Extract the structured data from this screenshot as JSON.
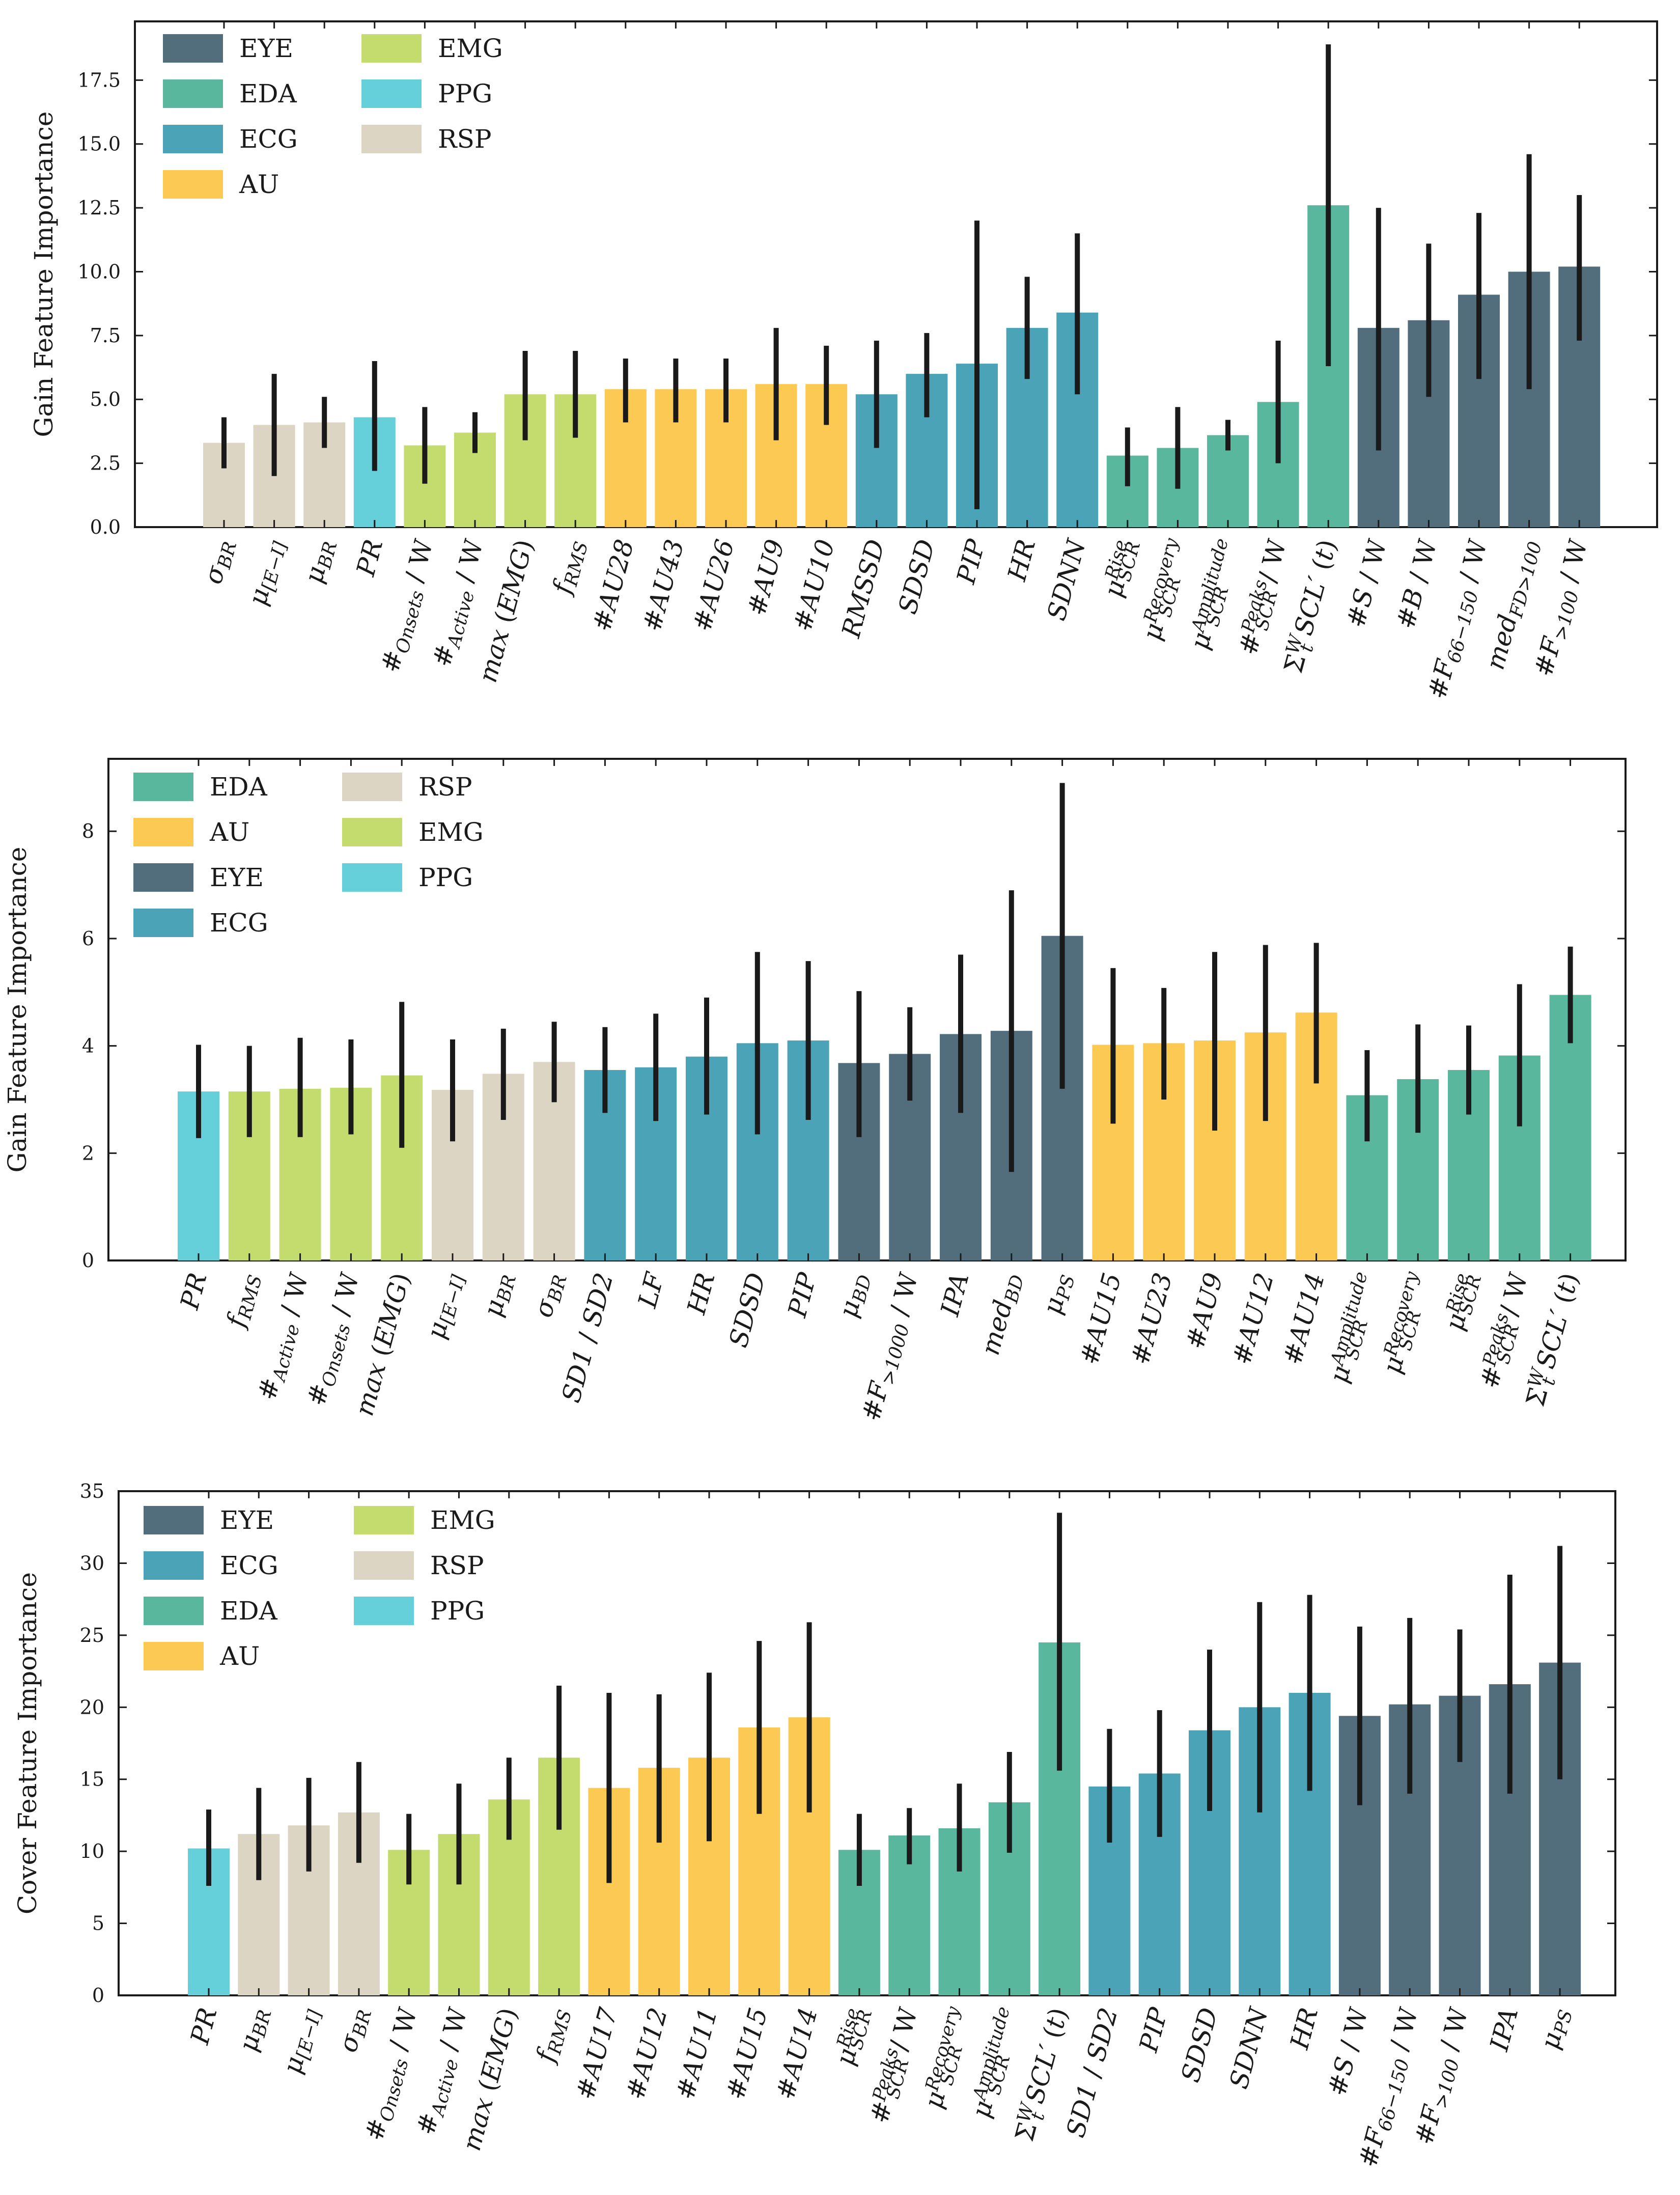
{
  "colors": {
    "EYE": "#526e7d",
    "EDA": "#58b79c",
    "ECG": "#4aa3b6",
    "AU": "#fcc952",
    "EMG": "#c4dc6e",
    "PPG": "#65d0da",
    "RSP": "#ddd5c3",
    "error_bar": "#1a1a1a"
  },
  "chart_data": [
    {
      "type": "bar",
      "ylabel": "Gain Feature Importance",
      "ylim": [
        0,
        19.8
      ],
      "yticks": [
        "0.0",
        "2.5",
        "5.0",
        "7.5",
        "10.0",
        "12.5",
        "15.0",
        "17.5"
      ],
      "legend": [
        "EYE",
        "EDA",
        "ECG",
        "AU",
        "EMG",
        "PPG",
        "RSP"
      ],
      "legend_position": "top-left",
      "categories": [
        "σBR",
        "μ[E−I]",
        "μBR",
        "PR",
        "#Onsets/W",
        "#Active/W",
        "max(EMG)",
        "fRMS",
        "#AU28",
        "#AU43",
        "#AU26",
        "#AU9",
        "#AU10",
        "RMSSD",
        "SDSD",
        "PIP",
        "HR",
        "SDNN",
        "μSCR Rise",
        "μSCR Recovery",
        "μSCR Amplitude",
        "#SCR Peaks/W",
        "Σt W SCL′(t)",
        "#S/W",
        "#B/W",
        "#F66−150/W",
        "medFD>100",
        "#F>100/W"
      ],
      "groups": [
        "RSP",
        "RSP",
        "RSP",
        "PPG",
        "EMG",
        "EMG",
        "EMG",
        "EMG",
        "AU",
        "AU",
        "AU",
        "AU",
        "AU",
        "ECG",
        "ECG",
        "ECG",
        "ECG",
        "ECG",
        "EDA",
        "EDA",
        "EDA",
        "EDA",
        "EDA",
        "EYE",
        "EYE",
        "EYE",
        "EYE",
        "EYE"
      ],
      "values": [
        3.3,
        4.0,
        4.1,
        4.3,
        3.2,
        3.7,
        5.2,
        5.2,
        5.4,
        5.4,
        5.4,
        5.6,
        5.6,
        5.2,
        6.0,
        6.4,
        7.8,
        8.4,
        2.8,
        3.1,
        3.6,
        4.9,
        12.6,
        7.8,
        8.1,
        9.1,
        10.0,
        10.2
      ],
      "err_low": [
        2.3,
        2.0,
        3.1,
        2.2,
        1.7,
        2.9,
        3.4,
        3.5,
        4.1,
        4.1,
        4.1,
        3.4,
        4.0,
        3.1,
        4.3,
        0.7,
        5.8,
        5.2,
        1.6,
        1.5,
        3.0,
        2.5,
        6.3,
        3.0,
        5.1,
        5.8,
        5.4,
        7.3
      ],
      "err_high": [
        4.3,
        6.0,
        5.1,
        6.5,
        4.7,
        4.5,
        6.9,
        6.9,
        6.6,
        6.6,
        6.6,
        7.8,
        7.1,
        7.3,
        7.6,
        12.0,
        9.8,
        11.5,
        3.9,
        4.7,
        4.2,
        7.3,
        18.9,
        12.5,
        11.1,
        12.3,
        14.6,
        13.0
      ]
    },
    {
      "type": "bar",
      "ylabel": "Gain Feature Importance",
      "ylim": [
        0,
        9.35
      ],
      "yticks": [
        "0",
        "2",
        "4",
        "6",
        "8"
      ],
      "legend": [
        "EDA",
        "AU",
        "EYE",
        "ECG",
        "RSP",
        "EMG",
        "PPG"
      ],
      "legend_position": "top-left",
      "categories": [
        "PR",
        "fRMS",
        "#Active/W",
        "#Onsets/W",
        "max(EMG)",
        "μ[E−I]",
        "μBR",
        "σBR",
        "SD1/SD2",
        "LF",
        "HR",
        "SDSD",
        "PIP",
        "μBD",
        "#F>1000/W",
        "IPA",
        "medBD",
        "μPS",
        "#AU15",
        "#AU23",
        "#AU9",
        "#AU12",
        "#AU14",
        "μSCR Amplitude",
        "μSCR Recovery",
        "μSCR Rise",
        "#SCR Peaks/W",
        "Σt W SCL′(t)"
      ],
      "groups": [
        "PPG",
        "EMG",
        "EMG",
        "EMG",
        "EMG",
        "RSP",
        "RSP",
        "RSP",
        "ECG",
        "ECG",
        "ECG",
        "ECG",
        "ECG",
        "EYE",
        "EYE",
        "EYE",
        "EYE",
        "EYE",
        "AU",
        "AU",
        "AU",
        "AU",
        "AU",
        "EDA",
        "EDA",
        "EDA",
        "EDA",
        "EDA"
      ],
      "values": [
        3.15,
        3.15,
        3.2,
        3.22,
        3.45,
        3.18,
        3.48,
        3.7,
        3.55,
        3.6,
        3.8,
        4.05,
        4.1,
        3.68,
        3.85,
        4.22,
        4.28,
        6.05,
        4.02,
        4.05,
        4.1,
        4.25,
        4.62,
        3.08,
        3.38,
        3.55,
        3.82,
        4.95
      ],
      "err_low": [
        2.28,
        2.3,
        2.3,
        2.35,
        2.1,
        2.22,
        2.62,
        2.95,
        2.75,
        2.6,
        2.72,
        2.35,
        2.62,
        2.3,
        2.98,
        2.75,
        1.65,
        3.2,
        2.55,
        3.0,
        2.42,
        2.6,
        3.3,
        2.22,
        2.38,
        2.72,
        2.5,
        4.05
      ],
      "err_high": [
        4.02,
        4.0,
        4.15,
        4.12,
        4.82,
        4.12,
        4.32,
        4.45,
        4.35,
        4.6,
        4.9,
        5.75,
        5.58,
        5.02,
        4.72,
        5.7,
        6.9,
        8.9,
        5.45,
        5.08,
        5.75,
        5.88,
        5.92,
        3.92,
        4.4,
        4.38,
        5.15,
        5.85
      ]
    },
    {
      "type": "bar",
      "ylabel": "Cover Feature Importance",
      "ylim": [
        0,
        35
      ],
      "yticks": [
        "0",
        "5",
        "10",
        "15",
        "20",
        "25",
        "30",
        "35"
      ],
      "legend": [
        "EYE",
        "ECG",
        "EDA",
        "AU",
        "EMG",
        "RSP",
        "PPG"
      ],
      "legend_position": "top-left",
      "categories": [
        "PR",
        "μBR",
        "μ[E−I]",
        "σBR",
        "#Onsets/W",
        "#Active/W",
        "max(EMG)",
        "fRMS",
        "#AU17",
        "#AU12",
        "#AU11",
        "#AU15",
        "#AU14",
        "μSCR Rise",
        "#SCR Peaks/W",
        "μSCR Recovery",
        "μSCR Amplitude",
        "Σt W SCL′(t)",
        "SD1/SD2",
        "PIP",
        "SDSD",
        "SDNN",
        "HR",
        "#S/W",
        "#F66−150/W",
        "#F>100/W",
        "IPA",
        "μPS"
      ],
      "groups": [
        "PPG",
        "RSP",
        "RSP",
        "RSP",
        "EMG",
        "EMG",
        "EMG",
        "EMG",
        "AU",
        "AU",
        "AU",
        "AU",
        "AU",
        "EDA",
        "EDA",
        "EDA",
        "EDA",
        "EDA",
        "ECG",
        "ECG",
        "ECG",
        "ECG",
        "ECG",
        "EYE",
        "EYE",
        "EYE",
        "EYE",
        "EYE"
      ],
      "values": [
        10.2,
        11.2,
        11.8,
        12.7,
        10.1,
        11.2,
        13.6,
        16.5,
        14.4,
        15.8,
        16.5,
        18.6,
        19.3,
        10.1,
        11.1,
        11.6,
        13.4,
        24.5,
        14.5,
        15.4,
        18.4,
        20.0,
        21.0,
        19.4,
        20.2,
        20.8,
        21.6,
        23.1
      ],
      "err_low": [
        7.6,
        8.0,
        8.6,
        9.2,
        7.7,
        7.7,
        10.8,
        11.5,
        7.8,
        10.6,
        10.7,
        12.6,
        12.7,
        7.6,
        9.1,
        8.6,
        9.9,
        15.6,
        10.6,
        11.0,
        12.8,
        12.7,
        14.2,
        13.2,
        14.0,
        16.2,
        14.0,
        15.0
      ],
      "err_high": [
        12.9,
        14.4,
        15.1,
        16.2,
        12.6,
        14.7,
        16.5,
        21.5,
        21.0,
        20.9,
        22.4,
        24.6,
        25.9,
        12.6,
        13.0,
        14.7,
        16.9,
        33.5,
        18.5,
        19.8,
        24.0,
        27.3,
        27.8,
        25.6,
        26.2,
        25.4,
        29.2,
        31.2
      ]
    }
  ]
}
